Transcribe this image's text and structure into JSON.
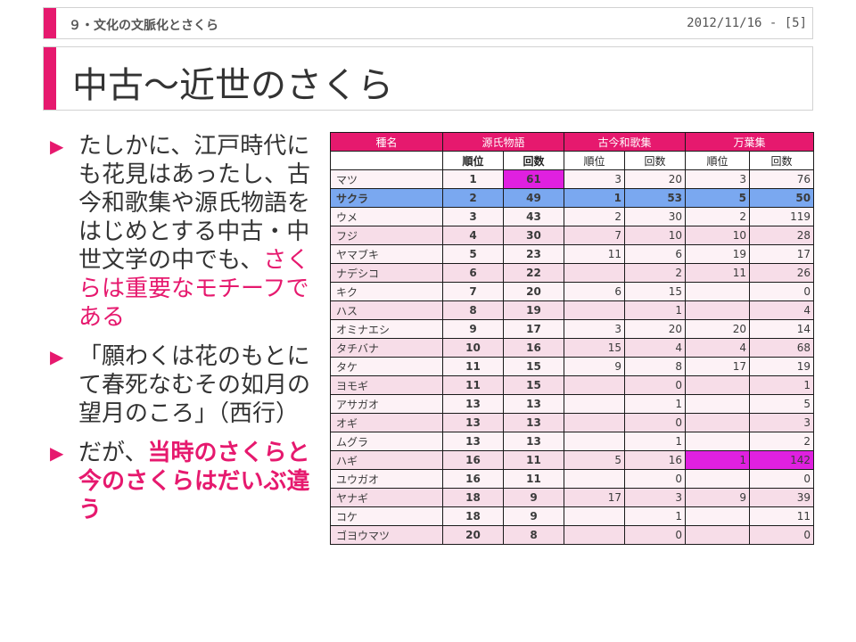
{
  "header": {
    "section": "９・文化の文脈化とさくら",
    "date_page": "2012/11/16 - [5]"
  },
  "title": "中古～近世のさくら",
  "bullets": {
    "b1_normal": "たしかに、江戸時代にも花見はあったし、古今和歌集や源氏物語をはじめとする中古・中世文学の中でも、",
    "b1_pink": "さくらは重要なモチーフである",
    "b2": "「願わくは花のもとにて春死なむその如月の望月のころ」（西行）",
    "b3_normal": "だが、",
    "b3_pink": "当時のさくらと今のさくらはだいぶ違う",
    "marker": "▶"
  },
  "table": {
    "headers": [
      "種名",
      "源氏物語",
      "古今和歌集",
      "万葉集"
    ],
    "subheaders": [
      "順位",
      "回数",
      "順位",
      "回数",
      "順位",
      "回数"
    ],
    "rows": [
      [
        "マツ",
        "1",
        "61",
        "3",
        "20",
        "3",
        "76"
      ],
      [
        "サクラ",
        "2",
        "49",
        "1",
        "53",
        "5",
        "50"
      ],
      [
        "ウメ",
        "3",
        "43",
        "2",
        "30",
        "2",
        "119"
      ],
      [
        "フジ",
        "4",
        "30",
        "7",
        "10",
        "10",
        "28"
      ],
      [
        "ヤマブキ",
        "5",
        "23",
        "11",
        "6",
        "19",
        "17"
      ],
      [
        "ナデシコ",
        "6",
        "22",
        "",
        "2",
        "11",
        "26"
      ],
      [
        "キク",
        "7",
        "20",
        "6",
        "15",
        "",
        "0"
      ],
      [
        "ハス",
        "8",
        "19",
        "",
        "1",
        "",
        "4"
      ],
      [
        "オミナエシ",
        "9",
        "17",
        "3",
        "20",
        "20",
        "14"
      ],
      [
        "タチバナ",
        "10",
        "16",
        "15",
        "4",
        "4",
        "68"
      ],
      [
        "タケ",
        "11",
        "15",
        "9",
        "8",
        "17",
        "19"
      ],
      [
        "ヨモギ",
        "11",
        "15",
        "",
        "0",
        "",
        "1"
      ],
      [
        "アサガオ",
        "13",
        "13",
        "",
        "1",
        "",
        "5"
      ],
      [
        "オギ",
        "13",
        "13",
        "",
        "0",
        "",
        "3"
      ],
      [
        "ムグラ",
        "13",
        "13",
        "",
        "1",
        "",
        "2"
      ],
      [
        "ハギ",
        "16",
        "11",
        "5",
        "16",
        "1",
        "142"
      ],
      [
        "ユウガオ",
        "16",
        "11",
        "",
        "0",
        "",
        "0"
      ],
      [
        "ヤナギ",
        "18",
        "9",
        "17",
        "3",
        "9",
        "39"
      ],
      [
        "コケ",
        "18",
        "9",
        "",
        "1",
        "",
        "11"
      ],
      [
        "ゴヨウマツ",
        "20",
        "8",
        "",
        "0",
        "",
        "0"
      ]
    ],
    "colors": {
      "header": "#e6196e",
      "highlight": "#e020e0",
      "sakura_row": "#7aa8f0"
    }
  }
}
